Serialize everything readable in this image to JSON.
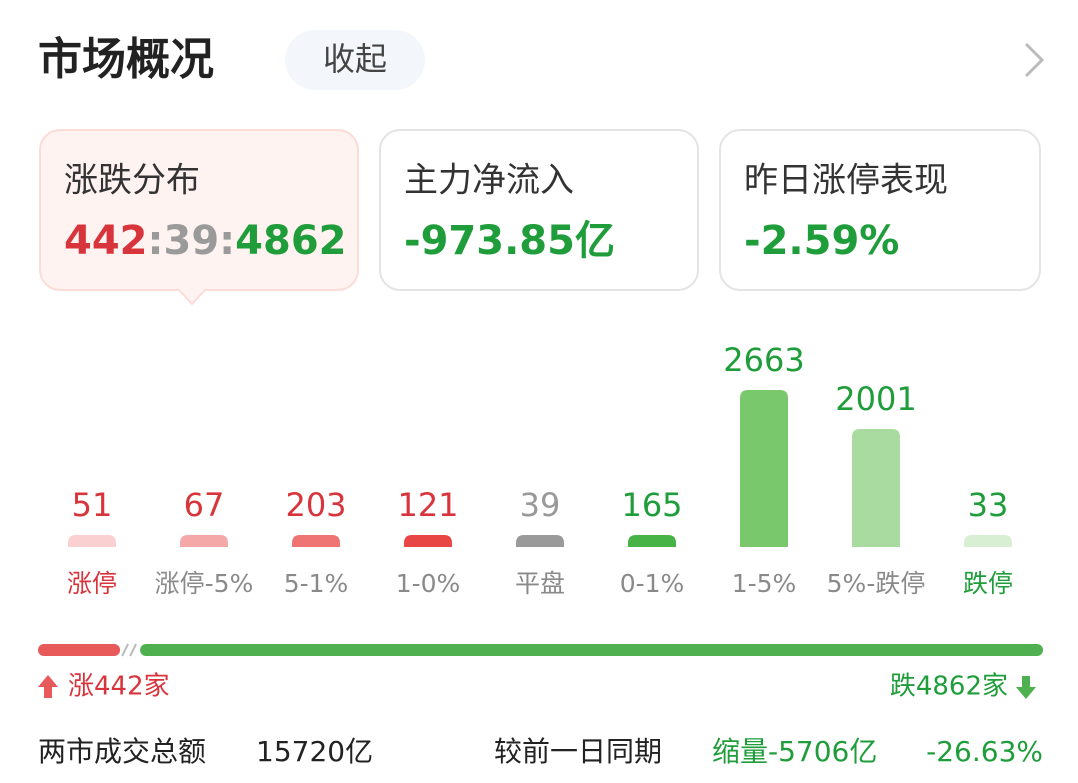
{
  "header": {
    "title": "市场概况",
    "button": "收起"
  },
  "cards": [
    {
      "title": "涨跌分布",
      "rise": "442",
      "separator": ":",
      "flat": "39",
      "fall": "4862"
    },
    {
      "title": "主力净流入",
      "value": "-973.85亿"
    },
    {
      "title": "昨日涨停表现",
      "value": "-2.59%"
    }
  ],
  "chart_data": {
    "type": "bar",
    "categories": [
      "涨停",
      "涨停-5%",
      "5-1%",
      "1-0%",
      "平盘",
      "0-1%",
      "1-5%",
      "5%-跌停",
      "跌停"
    ],
    "values": [
      51,
      67,
      203,
      121,
      39,
      165,
      2663,
      2001,
      33
    ],
    "colors": [
      "#fbd0d0",
      "#f5a8a8",
      "#ef7474",
      "#e84545",
      "#9a9a9a",
      "#47b347",
      "#79c86c",
      "#a9dba0",
      "#d8efd3"
    ],
    "value_colors": [
      "#d8343c",
      "#d8343c",
      "#d8343c",
      "#d8343c",
      "#999999",
      "#1f9d3a",
      "#1f9d3a",
      "#1f9d3a",
      "#1f9d3a"
    ],
    "category_colors": [
      "#d8343c",
      "#8a8a8a",
      "#8a8a8a",
      "#8a8a8a",
      "#8a8a8a",
      "#8a8a8a",
      "#8a8a8a",
      "#8a8a8a",
      "#1f9d3a"
    ]
  },
  "breadth": {
    "rise": 442,
    "fall": 4862,
    "rise_label": "涨442家",
    "fall_label": "跌4862家",
    "rise_color": "#e85a5a",
    "fall_color": "#4fb04f"
  },
  "summary": {
    "label": "两市成交总额",
    "value": "15720亿",
    "compare_label": "较前一日同期",
    "change": "缩量-5706亿",
    "change_pct": "-26.63%"
  }
}
